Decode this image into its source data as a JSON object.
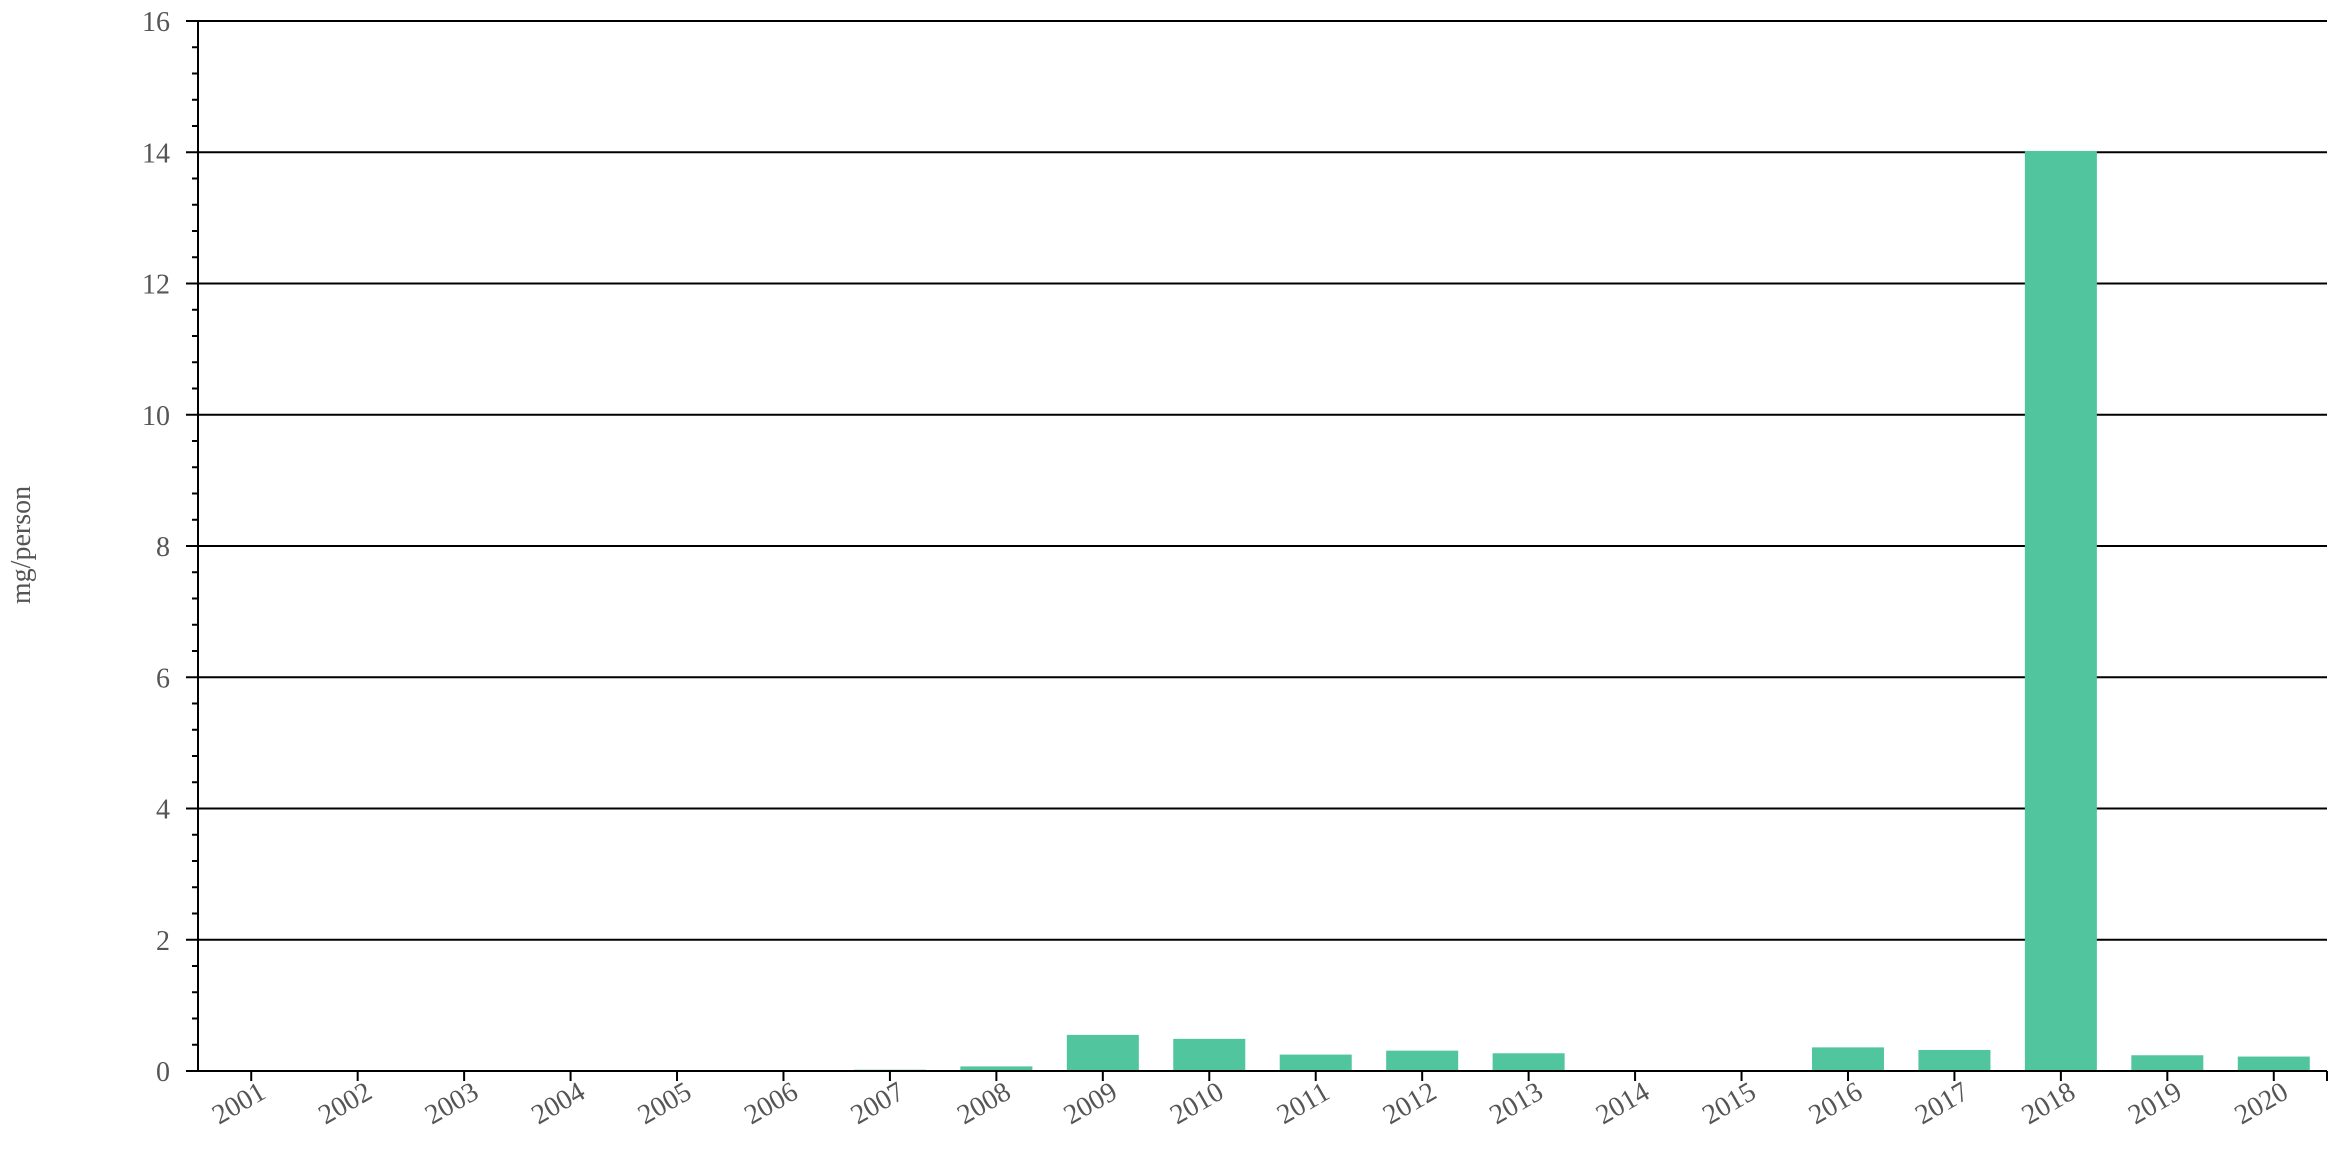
{
  "chart_data": {
    "type": "bar",
    "title": "",
    "xlabel": "",
    "ylabel": "mg/person",
    "ylim": [
      0,
      16
    ],
    "y_ticks": [
      0,
      2,
      4,
      6,
      8,
      10,
      12,
      14,
      16
    ],
    "grid": true,
    "legend": "none",
    "bar_color": "#50c59e",
    "categories": [
      "2001",
      "2002",
      "2003",
      "2004",
      "2005",
      "2006",
      "2007",
      "2008",
      "2009",
      "2010",
      "2011",
      "2012",
      "2013",
      "2014",
      "2015",
      "2016",
      "2017",
      "2018",
      "2019",
      "2020"
    ],
    "values": [
      0,
      0,
      0,
      0,
      0,
      0,
      0.02,
      0.07,
      0.55,
      0.49,
      0.25,
      0.31,
      0.27,
      0,
      0,
      0.36,
      0.32,
      14.02,
      0.24,
      0.22
    ]
  }
}
